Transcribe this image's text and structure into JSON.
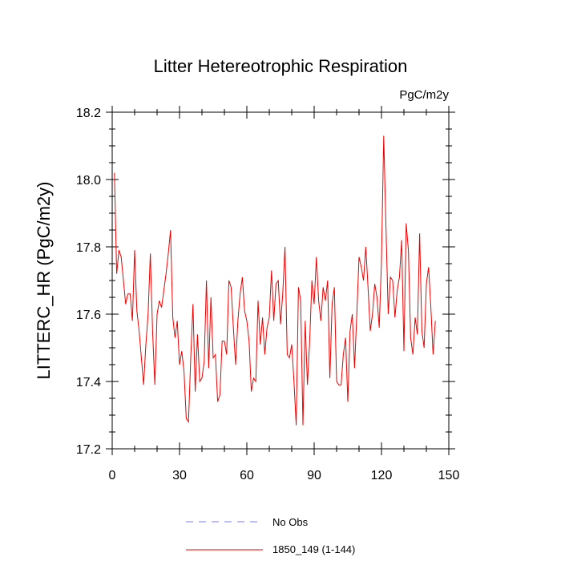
{
  "chart_data": {
    "type": "line",
    "title": "Litter Hetereotrophic Respiration",
    "units": "PgC/m2y",
    "xlabel": "",
    "ylabel": "LITTERC_HR  (PgC/m2y)",
    "xlim": [
      0,
      150
    ],
    "ylim": [
      17.2,
      18.2
    ],
    "xticks": [
      0,
      30,
      60,
      90,
      120,
      150
    ],
    "xtick_labels": [
      "0",
      "30",
      "60",
      "90",
      "120",
      "150"
    ],
    "yticks": [
      17.2,
      17.4,
      17.6,
      17.8,
      18.0,
      18.2
    ],
    "ytick_labels": [
      "17.2",
      "17.4",
      "17.6",
      "17.8",
      "18.0",
      "18.2"
    ],
    "grid": false,
    "legend_position": "bottom",
    "series": [
      {
        "name": "No Obs",
        "color": "#7a7aee",
        "dash": "dashed",
        "x": [],
        "values": []
      },
      {
        "name": "1850_149 (1-144)",
        "color": "#ee0000",
        "dash": "solid",
        "x_start": 1,
        "values": [
          18.02,
          17.72,
          17.79,
          17.77,
          17.7,
          17.63,
          17.66,
          17.66,
          17.58,
          17.79,
          17.61,
          17.55,
          17.47,
          17.39,
          17.51,
          17.6,
          17.78,
          17.55,
          17.39,
          17.6,
          17.64,
          17.62,
          17.67,
          17.72,
          17.78,
          17.85,
          17.59,
          17.53,
          17.58,
          17.45,
          17.49,
          17.43,
          17.29,
          17.28,
          17.47,
          17.63,
          17.37,
          17.54,
          17.4,
          17.41,
          17.46,
          17.7,
          17.44,
          17.65,
          17.47,
          17.48,
          17.34,
          17.36,
          17.52,
          17.52,
          17.48,
          17.7,
          17.68,
          17.56,
          17.45,
          17.58,
          17.66,
          17.71,
          17.61,
          17.58,
          17.52,
          17.37,
          17.41,
          17.4,
          17.64,
          17.51,
          17.59,
          17.48,
          17.56,
          17.59,
          17.73,
          17.58,
          17.69,
          17.7,
          17.57,
          17.66,
          17.8,
          17.48,
          17.47,
          17.51,
          17.4,
          17.27,
          17.68,
          17.64,
          17.27,
          17.58,
          17.39,
          17.52,
          17.7,
          17.63,
          17.77,
          17.64,
          17.58,
          17.68,
          17.64,
          17.7,
          17.41,
          17.63,
          17.68,
          17.4,
          17.39,
          17.39,
          17.48,
          17.53,
          17.34,
          17.55,
          17.6,
          17.44,
          17.6,
          17.77,
          17.74,
          17.7,
          17.8,
          17.68,
          17.55,
          17.6,
          17.69,
          17.65,
          17.56,
          17.76,
          18.13,
          17.86,
          17.6,
          17.71,
          17.7,
          17.59,
          17.67,
          17.71,
          17.82,
          17.49,
          17.87,
          17.79,
          17.53,
          17.48,
          17.59,
          17.54,
          17.84,
          17.55,
          17.5,
          17.69,
          17.74,
          17.62,
          17.48,
          17.58
        ]
      }
    ]
  }
}
